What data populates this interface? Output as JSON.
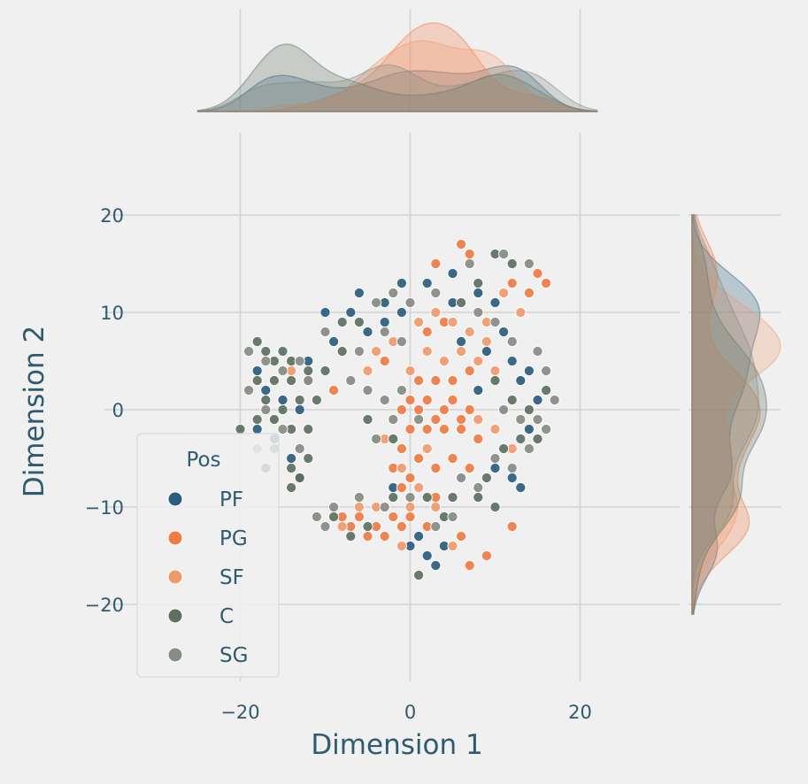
{
  "chart_data": {
    "type": "scatter",
    "title": "",
    "xlabel": "Dimension 1",
    "ylabel": "Dimension 2",
    "xlim": [
      -30,
      30
    ],
    "ylim": [
      -27,
      27
    ],
    "xticks": [
      -20,
      0,
      20
    ],
    "yticks": [
      -20,
      -10,
      0,
      10,
      20
    ],
    "xtick_labels": [
      "−20",
      "0",
      "20"
    ],
    "ytick_labels": [
      "−20",
      "−10",
      "0",
      "10",
      "20"
    ],
    "grid": true,
    "legend": {
      "title": "Pos",
      "placement": "lower-left"
    },
    "marginals": "kde",
    "series": [
      {
        "name": "PF",
        "color": "#2a5d7e",
        "points": [
          [
            -6,
            12
          ],
          [
            -3,
            11
          ],
          [
            -1,
            13
          ],
          [
            2,
            13
          ],
          [
            5,
            14
          ],
          [
            8,
            12
          ],
          [
            10,
            11
          ],
          [
            -10,
            10
          ],
          [
            -7,
            10
          ],
          [
            -5,
            8
          ],
          [
            -3,
            9
          ],
          [
            -1,
            10
          ],
          [
            -9,
            7
          ],
          [
            6,
            7
          ],
          [
            9,
            6
          ],
          [
            12,
            5
          ],
          [
            14,
            4
          ],
          [
            -18,
            4
          ],
          [
            -17,
            2
          ],
          [
            -15,
            1
          ],
          [
            -13,
            0
          ],
          [
            -18,
            -2
          ],
          [
            -16,
            -3
          ],
          [
            -14,
            -5
          ],
          [
            -17,
            -6
          ],
          [
            -13,
            -7
          ],
          [
            10,
            -6
          ],
          [
            12,
            -7
          ],
          [
            13,
            -8
          ],
          [
            -2,
            -8
          ],
          [
            0,
            -14
          ],
          [
            2,
            -15
          ],
          [
            3,
            -16
          ],
          [
            4,
            -14
          ],
          [
            1,
            -13
          ],
          [
            13,
            3
          ],
          [
            15,
            1
          ],
          [
            8,
            2
          ],
          [
            -12,
            5
          ],
          [
            5,
            11
          ],
          [
            14,
            -2
          ],
          [
            11,
            8
          ]
        ]
      },
      {
        "name": "PG",
        "color": "#ef7b45",
        "points": [
          [
            -1,
            0
          ],
          [
            0,
            1
          ],
          [
            1,
            0
          ],
          [
            2,
            1
          ],
          [
            3,
            -1
          ],
          [
            4,
            0
          ],
          [
            5,
            1
          ],
          [
            6,
            -1
          ],
          [
            7,
            0
          ],
          [
            0,
            -2
          ],
          [
            2,
            -2
          ],
          [
            4,
            -2
          ],
          [
            6,
            -2
          ],
          [
            8,
            -3
          ],
          [
            1,
            3
          ],
          [
            3,
            3
          ],
          [
            5,
            3
          ],
          [
            7,
            4
          ],
          [
            -1,
            -4
          ],
          [
            1,
            -5
          ],
          [
            3,
            -6
          ],
          [
            -2,
            -6
          ],
          [
            -1,
            -8
          ],
          [
            0,
            -7
          ],
          [
            -8,
            -11
          ],
          [
            -6,
            -11
          ],
          [
            -4,
            -12
          ],
          [
            -2,
            -11
          ],
          [
            0,
            -11
          ],
          [
            2,
            -12
          ],
          [
            -7,
            -12
          ],
          [
            -5,
            -13
          ],
          [
            -3,
            -13
          ],
          [
            -1,
            -12
          ],
          [
            6,
            17
          ],
          [
            7,
            16
          ],
          [
            3,
            15
          ],
          [
            12,
            13
          ],
          [
            15,
            14
          ],
          [
            16,
            13
          ],
          [
            14,
            12
          ],
          [
            -12,
            3
          ],
          [
            -9,
            2
          ],
          [
            2,
            8
          ],
          [
            4,
            9
          ],
          [
            -3,
            5
          ],
          [
            5,
            -5
          ],
          [
            7,
            -6
          ],
          [
            6,
            -13
          ],
          [
            9,
            -15
          ],
          [
            12,
            -12
          ],
          [
            7,
            -16
          ],
          [
            3,
            -9
          ]
        ]
      },
      {
        "name": "SF",
        "color": "#f09a6c",
        "points": [
          [
            1,
            9
          ],
          [
            3,
            10
          ],
          [
            5,
            9
          ],
          [
            7,
            8
          ],
          [
            9,
            7
          ],
          [
            2,
            6
          ],
          [
            4,
            5
          ],
          [
            8,
            5
          ],
          [
            10,
            4
          ],
          [
            -4,
            6
          ],
          [
            -2,
            7
          ],
          [
            -5,
            4
          ],
          [
            0,
            4
          ],
          [
            6,
            6
          ],
          [
            -3,
            -3
          ],
          [
            -1,
            -6
          ],
          [
            1,
            -8
          ],
          [
            2,
            -4
          ],
          [
            -6,
            -10
          ],
          [
            -4,
            -10
          ],
          [
            3,
            -10
          ],
          [
            -8,
            -12
          ],
          [
            0,
            -10
          ],
          [
            11,
            12
          ],
          [
            13,
            10
          ],
          [
            9,
            9
          ],
          [
            -1,
            -14
          ],
          [
            5,
            -14
          ],
          [
            10,
            -2
          ],
          [
            12,
            -4
          ],
          [
            8,
            -1
          ],
          [
            -14,
            4
          ]
        ]
      },
      {
        "name": "C",
        "color": "#5c7060",
        "points": [
          [
            -18,
            7
          ],
          [
            -17,
            6
          ],
          [
            -16,
            5
          ],
          [
            -15,
            6
          ],
          [
            -14,
            5
          ],
          [
            -18,
            3
          ],
          [
            -16,
            3
          ],
          [
            -14,
            3
          ],
          [
            -12,
            4
          ],
          [
            -17,
            1
          ],
          [
            -15,
            0
          ],
          [
            -13,
            1
          ],
          [
            -11,
            1
          ],
          [
            -18,
            -1
          ],
          [
            -16,
            -1
          ],
          [
            -14,
            -2
          ],
          [
            -12,
            -2
          ],
          [
            -16,
            -4
          ],
          [
            -14,
            -6
          ],
          [
            -12,
            -5
          ],
          [
            -14,
            -8
          ],
          [
            -13,
            -7
          ],
          [
            -20,
            -2
          ],
          [
            6,
            11
          ],
          [
            8,
            13
          ],
          [
            10,
            16
          ],
          [
            12,
            15
          ],
          [
            -8,
            9
          ],
          [
            -6,
            9
          ],
          [
            -10,
            4
          ],
          [
            -8,
            6
          ],
          [
            10,
            3
          ],
          [
            12,
            1
          ],
          [
            14,
            0
          ],
          [
            16,
            2
          ],
          [
            11,
            -4
          ],
          [
            13,
            -3
          ],
          [
            8,
            -9
          ],
          [
            10,
            -10
          ],
          [
            5,
            -9
          ],
          [
            -9,
            -11
          ],
          [
            -7,
            -13
          ],
          [
            -5,
            -12
          ],
          [
            2,
            -9
          ],
          [
            4,
            -11
          ],
          [
            1,
            -17
          ],
          [
            -2,
            -9
          ],
          [
            -5,
            -1
          ],
          [
            -2,
            -3
          ],
          [
            9,
            -7
          ],
          [
            15,
            -3
          ]
        ]
      },
      {
        "name": "SG",
        "color": "#868c82",
        "points": [
          [
            -19,
            6
          ],
          [
            -17,
            5
          ],
          [
            -15,
            4
          ],
          [
            -13,
            5
          ],
          [
            -19,
            2
          ],
          [
            -17,
            0
          ],
          [
            -15,
            -2
          ],
          [
            -13,
            -4
          ],
          [
            -18,
            -4
          ],
          [
            -12,
            3
          ],
          [
            -4,
            11
          ],
          [
            -2,
            12
          ],
          [
            0,
            11
          ],
          [
            3,
            12
          ],
          [
            7,
            15
          ],
          [
            11,
            16
          ],
          [
            14,
            15
          ],
          [
            -10,
            8
          ],
          [
            -6,
            6
          ],
          [
            -3,
            8
          ],
          [
            -1,
            7
          ],
          [
            8,
            10
          ],
          [
            10,
            9
          ],
          [
            12,
            7
          ],
          [
            15,
            6
          ],
          [
            16,
            4
          ],
          [
            -7,
            3
          ],
          [
            -5,
            2
          ],
          [
            -3,
            1
          ],
          [
            -1,
            2
          ],
          [
            1,
            -1
          ],
          [
            11,
            0
          ],
          [
            13,
            -1
          ],
          [
            15,
            -1
          ],
          [
            17,
            1
          ],
          [
            10,
            -5
          ],
          [
            12,
            -6
          ],
          [
            14,
            -4
          ],
          [
            6,
            -7
          ],
          [
            8,
            -8
          ],
          [
            -9,
            -10
          ],
          [
            -6,
            -9
          ],
          [
            -3,
            -10
          ],
          [
            0,
            -9
          ],
          [
            3,
            -12
          ],
          [
            5,
            -11
          ],
          [
            -11,
            -11
          ],
          [
            -10,
            -12
          ],
          [
            -4,
            -3
          ],
          [
            -2,
            -1
          ],
          [
            16,
            -2
          ]
        ]
      }
    ]
  }
}
